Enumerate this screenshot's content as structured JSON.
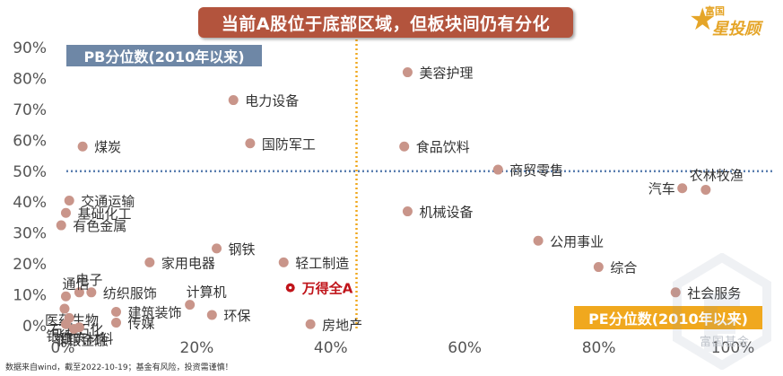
{
  "header": {
    "title": "当前A股位于底部区域，但板块间仍有分化",
    "logo_brand": "富国",
    "logo_name": "星投顾"
  },
  "footer": {
    "source": "数据来自wind，截至2022-10-19；基金有风险，投资需谨慎！",
    "watermark": "富国基金"
  },
  "colors": {
    "point": "#c9958a",
    "highlight": "#c0141a",
    "pb_line": "#5b7fb0",
    "pe_line": "#f0a81e",
    "title_bg": "#b3543d",
    "pb_label_bg": "#6e87a6",
    "pe_label_bg": "#f0a81e"
  },
  "chart_data": {
    "type": "scatter",
    "title": "",
    "xlabel": "PE分位数(2010年以来)",
    "ylabel": "PB分位数(2010年以来)",
    "xlim": [
      0,
      1.05
    ],
    "ylim": [
      -0.03,
      0.9
    ],
    "x_ticks": [
      0,
      0.2,
      0.4,
      0.6,
      0.8,
      1.0
    ],
    "x_tick_labels": [
      "0%",
      "20%",
      "40%",
      "60%",
      "80%",
      "100%"
    ],
    "y_ticks": [
      0,
      0.1,
      0.2,
      0.3,
      0.4,
      0.5,
      0.6,
      0.7,
      0.8,
      0.9
    ],
    "y_tick_labels": [
      "0%",
      "10%",
      "20%",
      "30%",
      "40%",
      "50%",
      "60%",
      "70%",
      "80%",
      "90%"
    ],
    "reference_lines": {
      "pb": 0.5,
      "pe": 0.5
    },
    "points": [
      {
        "name": "美容护理",
        "x": 0.52,
        "y": 0.82,
        "label_pos": "right"
      },
      {
        "name": "电力设备",
        "x": 0.26,
        "y": 0.73,
        "label_pos": "right"
      },
      {
        "name": "国防军工",
        "x": 0.285,
        "y": 0.59,
        "label_pos": "right"
      },
      {
        "name": "食品饮料",
        "x": 0.515,
        "y": 0.58,
        "label_pos": "right"
      },
      {
        "name": "煤炭",
        "x": 0.035,
        "y": 0.58,
        "label_pos": "right"
      },
      {
        "name": "商贸零售",
        "x": 0.655,
        "y": 0.505,
        "label_pos": "right"
      },
      {
        "name": "农林牧渔",
        "x": 0.965,
        "y": 0.44,
        "label_pos": "above-right"
      },
      {
        "name": "汽车",
        "x": 0.93,
        "y": 0.445,
        "label_pos": "left"
      },
      {
        "name": "交通运输",
        "x": 0.015,
        "y": 0.405,
        "label_pos": "right"
      },
      {
        "name": "机械设备",
        "x": 0.52,
        "y": 0.37,
        "label_pos": "right"
      },
      {
        "name": "基础化工",
        "x": 0.01,
        "y": 0.365,
        "label_pos": "right"
      },
      {
        "name": "有色金属",
        "x": 0.003,
        "y": 0.325,
        "label_pos": "right"
      },
      {
        "name": "公用事业",
        "x": 0.715,
        "y": 0.275,
        "label_pos": "right"
      },
      {
        "name": "钢铁",
        "x": 0.235,
        "y": 0.25,
        "label_pos": "right"
      },
      {
        "name": "家用电器",
        "x": 0.135,
        "y": 0.205,
        "label_pos": "right"
      },
      {
        "name": "轻工制造",
        "x": 0.335,
        "y": 0.205,
        "label_pos": "right"
      },
      {
        "name": "综合",
        "x": 0.805,
        "y": 0.19,
        "label_pos": "right"
      },
      {
        "name": "万得全A",
        "x": 0.345,
        "y": 0.123,
        "label_pos": "right",
        "highlight": true
      },
      {
        "name": "电子",
        "x": 0.03,
        "y": 0.108,
        "label_pos": "above"
      },
      {
        "name": "纺织服饰",
        "x": 0.048,
        "y": 0.108,
        "label_pos": "right"
      },
      {
        "name": "社会服务",
        "x": 0.92,
        "y": 0.108,
        "label_pos": "right"
      },
      {
        "name": "通信",
        "x": 0.01,
        "y": 0.095,
        "label_pos": "above"
      },
      {
        "name": "计算机",
        "x": 0.195,
        "y": 0.068,
        "label_pos": "above"
      },
      {
        "name": "医药生物",
        "x": 0.008,
        "y": 0.055,
        "label_pos": "below"
      },
      {
        "name": "建筑装饰",
        "x": 0.085,
        "y": 0.045,
        "label_pos": "right"
      },
      {
        "name": "环保",
        "x": 0.228,
        "y": 0.035,
        "label_pos": "right"
      },
      {
        "name": "石油石化",
        "x": 0.015,
        "y": 0.025,
        "label_pos": "below"
      },
      {
        "name": "传媒",
        "x": 0.085,
        "y": 0.01,
        "label_pos": "right"
      },
      {
        "name": "房地产",
        "x": 0.375,
        "y": 0.005,
        "label_pos": "right"
      },
      {
        "name": "银行",
        "x": 0.01,
        "y": 0.005,
        "label_pos": "below"
      },
      {
        "name": "建筑材料",
        "x": 0.03,
        "y": -0.005,
        "label_pos": "below"
      },
      {
        "name": "非银金融",
        "x": 0.022,
        "y": -0.01,
        "label_pos": "below"
      }
    ]
  }
}
